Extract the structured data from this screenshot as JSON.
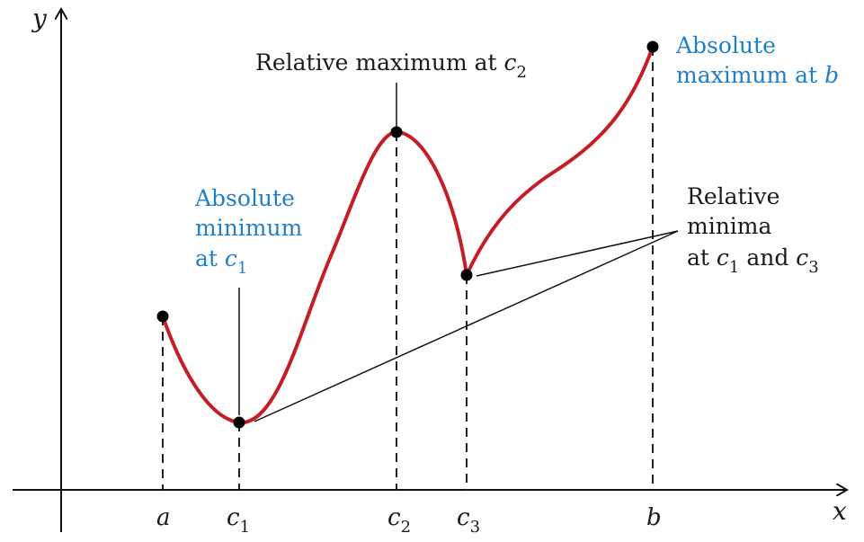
{
  "axes": {
    "x": "x",
    "y": "y"
  },
  "ticks": {
    "a": {
      "base": "a",
      "sub": ""
    },
    "c1": {
      "base": "c",
      "sub": "1"
    },
    "c2": {
      "base": "c",
      "sub": "2"
    },
    "c3": {
      "base": "c",
      "sub": "3"
    },
    "b": {
      "base": "b",
      "sub": ""
    }
  },
  "labels": {
    "rel_max": {
      "text": "Relative maximum at ",
      "var": "c",
      "sub": "2"
    },
    "abs_min": {
      "line1": "Absolute",
      "line2": "minimum",
      "line3": "at ",
      "var": "c",
      "sub": "1"
    },
    "abs_max": {
      "line1": "Absolute",
      "line2": "maximum at ",
      "var": "b"
    },
    "rel_min": {
      "line1": "Relative",
      "line2": "minima",
      "line3": "at ",
      "var1": "c",
      "sub1": "1",
      "and": " and ",
      "var2": "c",
      "sub2": "3"
    }
  },
  "colors": {
    "curve": "#c41e24",
    "highlight": "#1f7fc8",
    "ink": "#1a1a1a"
  }
}
